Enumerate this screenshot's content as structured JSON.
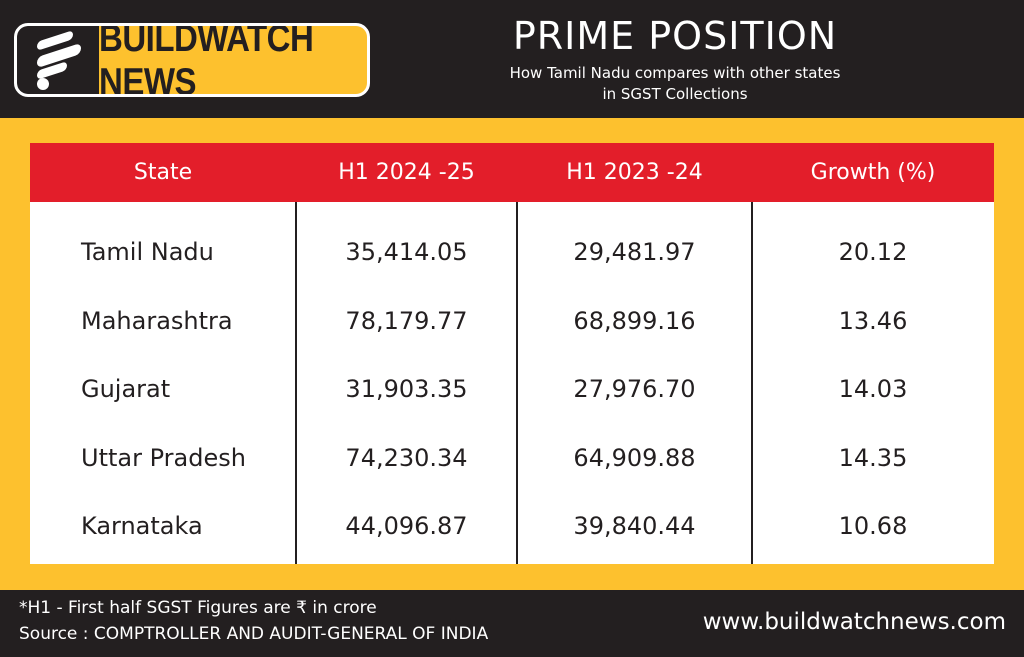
{
  "header": {
    "brand": "BUILDWATCH NEWS",
    "title": "PRIME POSITION",
    "subtitle_line1": "How Tamil Nadu compares with other states",
    "subtitle_line2": "in SGST Collections"
  },
  "colors": {
    "background": "#231f20",
    "frame": "#fdc12e",
    "header_row": "#e31e2a",
    "table_bg": "#ffffff"
  },
  "chart_data": {
    "type": "table",
    "title": "PRIME POSITION",
    "columns": [
      "State",
      "H1 2024 -25",
      "H1 2023 -24",
      "Growth (%)"
    ],
    "rows": [
      [
        "Tamil Nadu",
        "35,414.05",
        "29,481.97",
        "20.12"
      ],
      [
        "Maharashtra",
        "78,179.77",
        "68,899.16",
        "13.46"
      ],
      [
        "Gujarat",
        "31,903.35",
        "27,976.70",
        "14.03"
      ],
      [
        "Uttar Pradesh",
        "74,230.34",
        "64,909.88",
        "14.35"
      ],
      [
        "Karnataka",
        "44,096.87",
        "39,840.44",
        "10.68"
      ]
    ]
  },
  "footer": {
    "note": "*H1 - First half SGST Figures are ₹ in crore",
    "source": "Source : COMPTROLLER AND AUDIT-GENERAL OF INDIA",
    "website": "www.buildwatchnews.com"
  }
}
